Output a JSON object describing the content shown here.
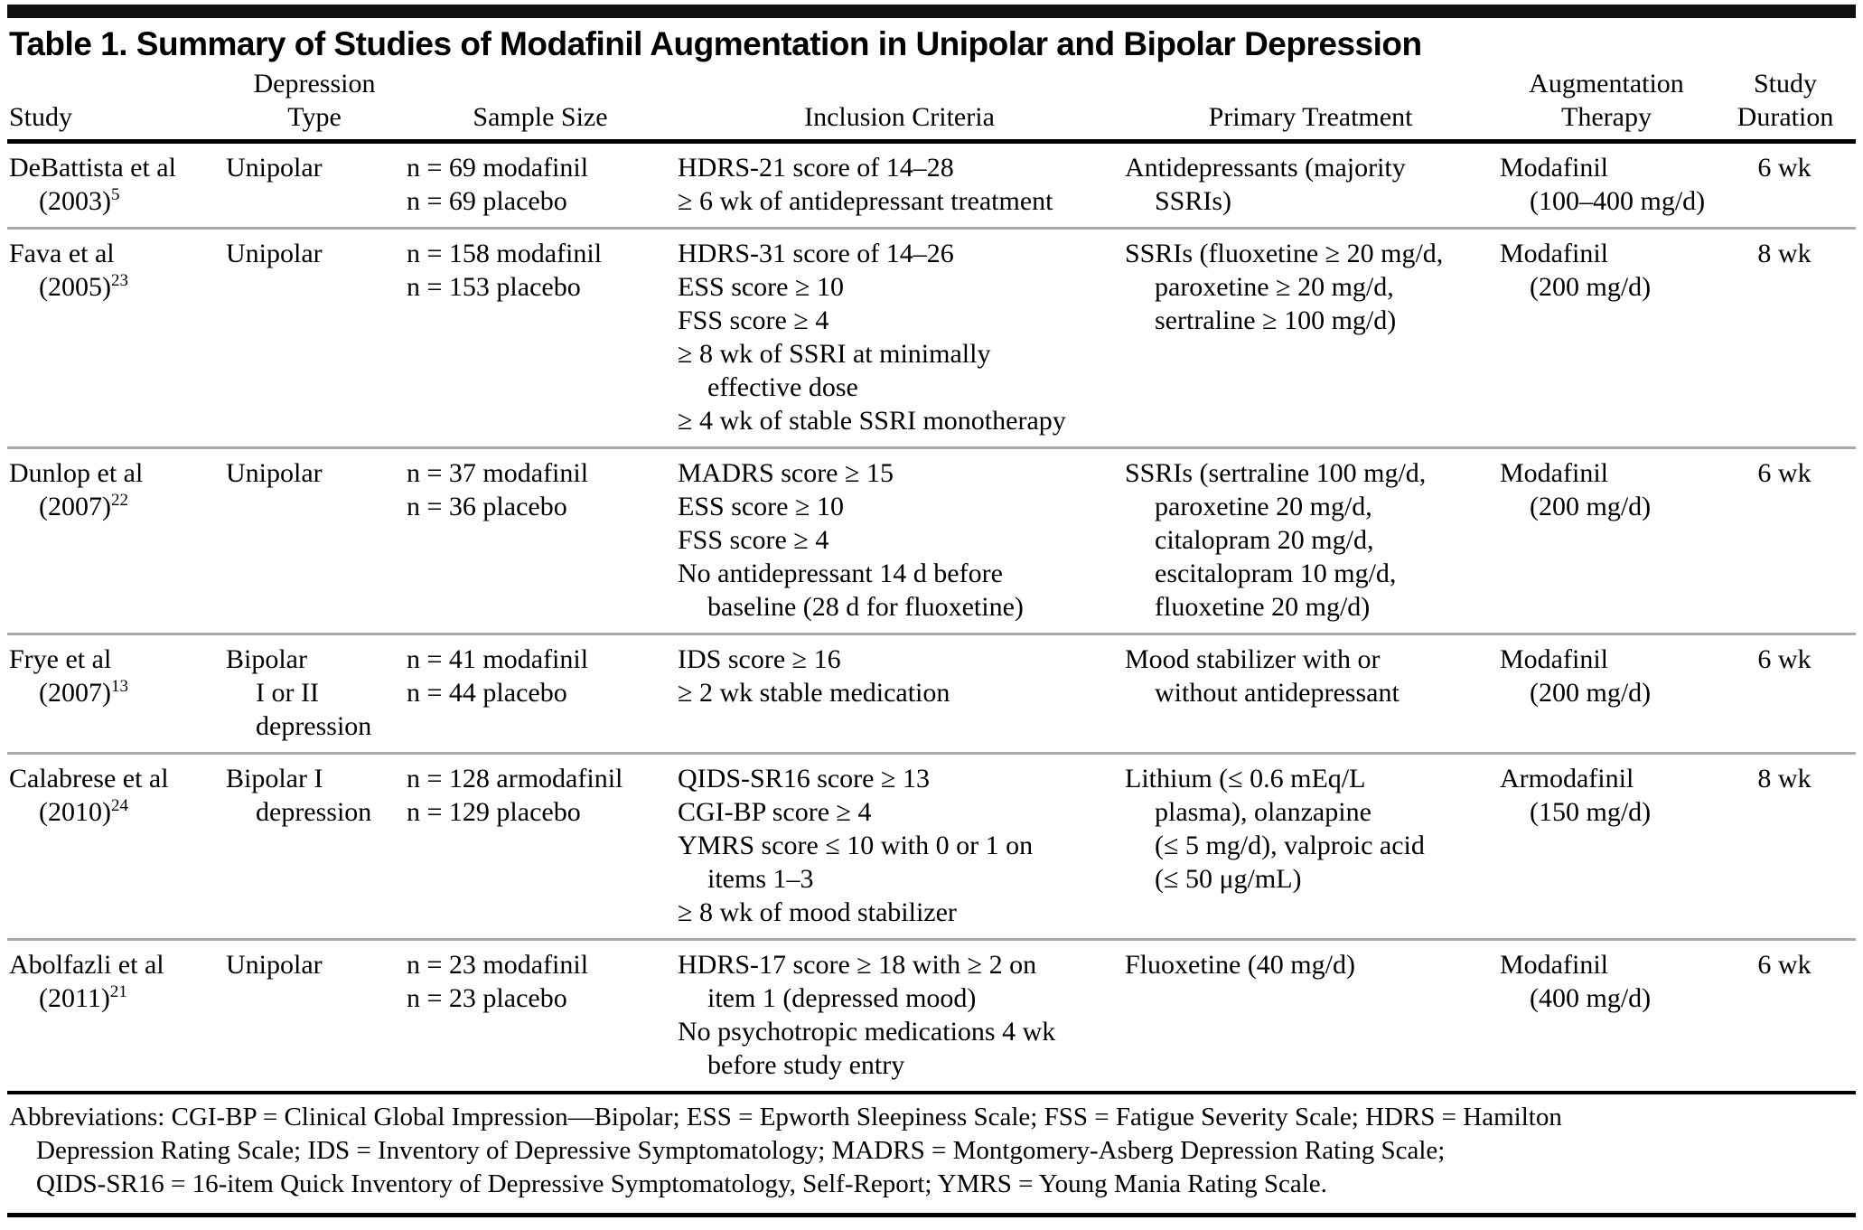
{
  "title": "Table 1. Summary of Studies of Modafinil Augmentation in Unipolar and Bipolar Depression",
  "table": {
    "columns": [
      {
        "id": "study",
        "label_lines": [
          "Study"
        ],
        "header_align": "left",
        "cell_align": "left"
      },
      {
        "id": "depression_type",
        "label_lines": [
          "Depression",
          "Type"
        ],
        "header_align": "center",
        "cell_align": "left"
      },
      {
        "id": "sample_size",
        "label_lines": [
          "Sample Size"
        ],
        "header_align": "center",
        "cell_align": "left"
      },
      {
        "id": "inclusion_criteria",
        "label_lines": [
          "Inclusion Criteria"
        ],
        "header_align": "center",
        "cell_align": "left"
      },
      {
        "id": "primary_treatment",
        "label_lines": [
          "Primary Treatment"
        ],
        "header_align": "center",
        "cell_align": "left"
      },
      {
        "id": "augmentation_therapy",
        "label_lines": [
          "Augmentation",
          "Therapy"
        ],
        "header_align": "center",
        "cell_align": "left"
      },
      {
        "id": "study_duration",
        "label_lines": [
          "Study",
          "Duration"
        ],
        "header_align": "center",
        "cell_align": "center"
      }
    ],
    "rows": [
      {
        "study": [
          "DeBattista et al",
          {
            "t": "(2003)",
            "sup": "5",
            "ind": true
          }
        ],
        "depression_type": [
          "Unipolar"
        ],
        "sample_size": [
          "n = 69 modafinil",
          "n = 69 placebo"
        ],
        "inclusion_criteria": [
          "HDRS-21 score of 14–28",
          "≥ 6 wk of antidepressant treatment"
        ],
        "primary_treatment": [
          "Antidepressants (majority",
          {
            "t": "SSRIs)",
            "ind": true
          }
        ],
        "augmentation_therapy": [
          "Modafinil",
          {
            "t": "(100–400 mg/d)",
            "ind": true
          }
        ],
        "study_duration": [
          "6 wk"
        ]
      },
      {
        "study": [
          "Fava et al",
          {
            "t": "(2005)",
            "sup": "23",
            "ind": true
          }
        ],
        "depression_type": [
          "Unipolar"
        ],
        "sample_size": [
          "n = 158 modafinil",
          "n = 153 placebo"
        ],
        "inclusion_criteria": [
          "HDRS-31 score of 14–26",
          "ESS score ≥ 10",
          "FSS score ≥ 4",
          "≥ 8 wk of SSRI at minimally",
          {
            "t": "effective dose",
            "ind": true
          },
          "≥ 4 wk of stable SSRI monotherapy"
        ],
        "primary_treatment": [
          "SSRIs (fluoxetine ≥ 20 mg/d,",
          {
            "t": "paroxetine ≥ 20 mg/d,",
            "ind": true
          },
          {
            "t": "sertraline ≥ 100 mg/d)",
            "ind": true
          }
        ],
        "augmentation_therapy": [
          "Modafinil",
          {
            "t": "(200 mg/d)",
            "ind": true
          }
        ],
        "study_duration": [
          "8 wk"
        ]
      },
      {
        "study": [
          "Dunlop et al",
          {
            "t": "(2007)",
            "sup": "22",
            "ind": true
          }
        ],
        "depression_type": [
          "Unipolar"
        ],
        "sample_size": [
          "n = 37 modafinil",
          "n = 36 placebo"
        ],
        "inclusion_criteria": [
          "MADRS score ≥ 15",
          "ESS score ≥ 10",
          "FSS score ≥ 4",
          "No antidepressant 14 d before",
          {
            "t": "baseline (28 d for fluoxetine)",
            "ind": true
          }
        ],
        "primary_treatment": [
          "SSRIs (sertraline 100 mg/d,",
          {
            "t": "paroxetine 20 mg/d,",
            "ind": true
          },
          {
            "t": "citalopram 20 mg/d,",
            "ind": true
          },
          {
            "t": "escitalopram 10 mg/d,",
            "ind": true
          },
          {
            "t": "fluoxetine 20 mg/d)",
            "ind": true
          }
        ],
        "augmentation_therapy": [
          "Modafinil",
          {
            "t": "(200 mg/d)",
            "ind": true
          }
        ],
        "study_duration": [
          "6 wk"
        ]
      },
      {
        "study": [
          "Frye et al",
          {
            "t": "(2007)",
            "sup": "13",
            "ind": true
          }
        ],
        "depression_type": [
          "Bipolar",
          {
            "t": "I or II",
            "ind": true
          },
          {
            "t": "depression",
            "ind": true
          }
        ],
        "sample_size": [
          "n = 41 modafinil",
          "n = 44 placebo"
        ],
        "inclusion_criteria": [
          "IDS score ≥ 16",
          "≥ 2 wk stable medication"
        ],
        "primary_treatment": [
          "Mood stabilizer with or",
          {
            "t": "without antidepressant",
            "ind": true
          }
        ],
        "augmentation_therapy": [
          "Modafinil",
          {
            "t": "(200 mg/d)",
            "ind": true
          }
        ],
        "study_duration": [
          "6 wk"
        ]
      },
      {
        "study": [
          "Calabrese et al",
          {
            "t": "(2010)",
            "sup": "24",
            "ind": true
          }
        ],
        "depression_type": [
          "Bipolar I",
          {
            "t": "depression",
            "ind": true
          }
        ],
        "sample_size": [
          "n = 128 armodafinil",
          "n = 129 placebo"
        ],
        "inclusion_criteria": [
          "QIDS-SR16 score ≥ 13",
          "CGI-BP score ≥ 4",
          "YMRS score ≤ 10 with 0 or 1 on",
          {
            "t": "items 1–3",
            "ind": true
          },
          "≥ 8 wk of mood stabilizer"
        ],
        "primary_treatment": [
          "Lithium (≤ 0.6 mEq/L",
          {
            "t": "plasma), olanzapine",
            "ind": true
          },
          {
            "t": "(≤ 5 mg/d), valproic acid",
            "ind": true
          },
          {
            "t": "(≤ 50 μg/mL)",
            "ind": true
          }
        ],
        "augmentation_therapy": [
          "Armodafinil",
          {
            "t": "(150 mg/d)",
            "ind": true
          }
        ],
        "study_duration": [
          "8 wk"
        ]
      },
      {
        "study": [
          "Abolfazli et al",
          {
            "t": "(2011)",
            "sup": "21",
            "ind": true
          }
        ],
        "depression_type": [
          "Unipolar"
        ],
        "sample_size": [
          "n = 23 modafinil",
          "n = 23 placebo"
        ],
        "inclusion_criteria": [
          "HDRS-17 score ≥ 18 with ≥ 2 on",
          {
            "t": "item 1 (depressed mood)",
            "ind": true
          },
          "No psychotropic medications 4 wk",
          {
            "t": "before study entry",
            "ind": true
          }
        ],
        "primary_treatment": [
          "Fluoxetine (40 mg/d)"
        ],
        "augmentation_therapy": [
          "Modafinil",
          {
            "t": "(400 mg/d)",
            "ind": true
          }
        ],
        "study_duration": [
          "6 wk"
        ]
      }
    ]
  },
  "footnote": {
    "lines": [
      "Abbreviations: CGI-BP = Clinical Global Impression—Bipolar; ESS = Epworth Sleepiness Scale; FSS = Fatigue Severity Scale; HDRS = Hamilton",
      {
        "t": "Depression Rating Scale; IDS = Inventory of Depressive Symptomatology; MADRS = Montgomery-Asberg Depression Rating Scale;",
        "ind": true
      },
      {
        "t": "QIDS-SR16 = 16-item Quick Inventory of Depressive Symptomatology, Self-Report; YMRS = Young Mania Rating Scale.",
        "ind": true
      }
    ]
  }
}
